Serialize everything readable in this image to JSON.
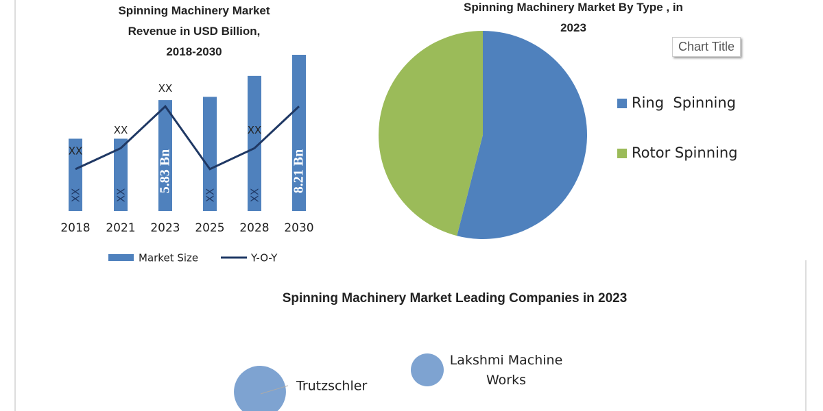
{
  "chart_data": [
    {
      "type": "bar_line",
      "title": "Spinning Machinery Market Revenue in USD Billion, 2018-2030",
      "categories": [
        "2018",
        "2021",
        "2023",
        "2025",
        "2028",
        "2030"
      ],
      "series": [
        {
          "name": "Market Size",
          "type": "bar",
          "color": "#4f81bd",
          "values": [
            3.8,
            3.8,
            5.83,
            6.0,
            7.1,
            8.21
          ],
          "value_labels": [
            "XX",
            "XX",
            "5.83 Bn",
            "XX",
            "XX",
            "8.21 Bn"
          ]
        },
        {
          "name": "Y-O-Y",
          "type": "line",
          "color": "#1f3864",
          "values": [
            2.2,
            3.3,
            5.5,
            2.2,
            3.3,
            5.5
          ],
          "value_labels": [
            "XX",
            "XX",
            "XX",
            null,
            "XX",
            null
          ]
        }
      ]
    },
    {
      "type": "pie",
      "title": "Spinning Machinery Market By  Type , in 2023",
      "placeholder_title": "Chart Title",
      "categories": [
        "Ring  Spinning",
        "Rotor Spinning"
      ],
      "values": [
        54,
        46
      ],
      "colors": [
        "#4f81bd",
        "#9bbb59"
      ]
    },
    {
      "type": "bubble",
      "title": "Spinning Machinery Market Leading Companies in 2023",
      "categories": [
        "Trutzschler",
        "Lakshmi Machine Works"
      ],
      "values": [
        2.5,
        1.0
      ],
      "color": "#7ea3d1"
    }
  ]
}
